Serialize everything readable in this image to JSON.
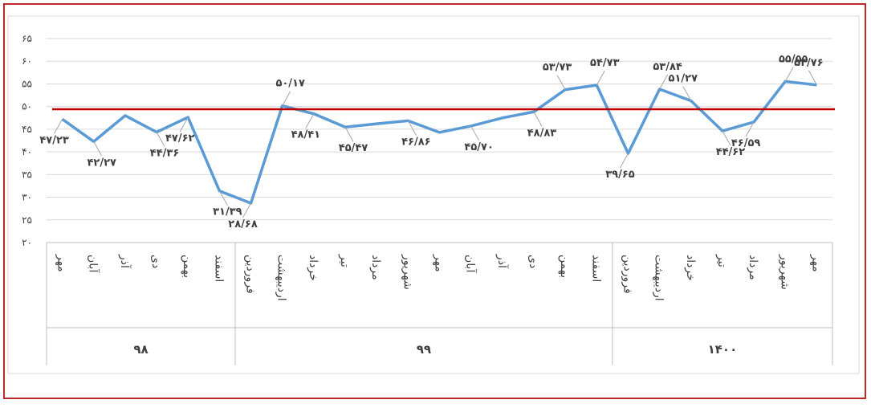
{
  "chart_data": {
    "type": "line",
    "categories": [
      "مهر",
      "آبان",
      "آذر",
      "دی",
      "بهمن",
      "اسفند",
      "فروردین",
      "اردیبهشت",
      "خرداد",
      "تیر",
      "مرداد",
      "شهریور",
      "مهر",
      "آبان",
      "آذر",
      "دی",
      "بهمن",
      "اسفند",
      "فروردین",
      "اردیبهشت",
      "خرداد",
      "تیر",
      "مرداد",
      "شهریور",
      "مهر"
    ],
    "groups": [
      {
        "label": "۹۸",
        "count": 6
      },
      {
        "label": "۹۹",
        "count": 12
      },
      {
        "label": "۱۴۰۰",
        "count": 7
      }
    ],
    "series": [
      {
        "color": "#5b9bd5",
        "values": [
          47.23,
          42.27,
          48.0,
          44.36,
          47.62,
          31.39,
          28.68,
          50.17,
          48.41,
          45.47,
          46.2,
          46.86,
          44.3,
          45.7,
          47.5,
          48.83,
          53.73,
          54.73,
          39.65,
          53.84,
          51.27,
          44.62,
          46.59,
          55.55,
          54.76
        ],
        "value_labels": [
          "۴۷/۲۳",
          "۴۲/۲۷",
          null,
          "۴۴/۳۶",
          "۴۷/۶۲",
          "۳۱/۳۹",
          "۲۸/۶۸",
          "۵۰/۱۷",
          "۴۸/۴۱",
          "۴۵/۴۷",
          null,
          "۴۶/۸۶",
          null,
          "۴۵/۷۰",
          null,
          "۴۸/۸۳",
          "۵۳/۷۳",
          "۵۴/۷۳",
          "۳۹/۶۵",
          "۵۳/۸۴",
          "۵۱/۲۷",
          "۴۴/۶۲",
          "۴۶/۵۹",
          "۵۵/۵۵",
          "۵۴/۷۶"
        ]
      }
    ],
    "reference_line": {
      "value": 49.4,
      "color": "#c00000"
    },
    "ylim": [
      20,
      65
    ],
    "yticks": [
      {
        "value": 20,
        "label": "۲۰"
      },
      {
        "value": 25,
        "label": "۲۵"
      },
      {
        "value": 30,
        "label": "۳۰"
      },
      {
        "value": 35,
        "label": "۳۵"
      },
      {
        "value": 40,
        "label": "۴۰"
      },
      {
        "value": 45,
        "label": "۴۵"
      },
      {
        "value": 50,
        "label": "۵۰"
      },
      {
        "value": 55,
        "label": "۵۵"
      },
      {
        "value": 60,
        "label": "۶۰"
      },
      {
        "value": 65,
        "label": "۶۵"
      }
    ],
    "grid": true
  }
}
